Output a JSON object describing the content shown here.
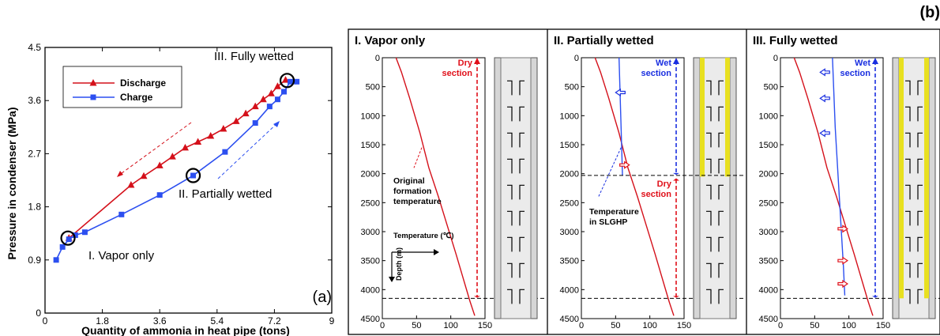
{
  "panel_labels": {
    "a": "(a)",
    "b": "(b)"
  },
  "colors": {
    "discharge": "#d4101a",
    "charge": "#2c4ff0",
    "red": "#e0101a",
    "blue": "#1a2fe0",
    "black": "#000000",
    "pipe_gray": "#d6d6d6",
    "pipe_yellow": "#e8e020"
  },
  "annotations_a": {
    "vapor_only": "I. Vapor only",
    "partially_wetted": "II. Partially wetted",
    "fully_wetted": "III. Fully wetted"
  },
  "b_panels": {
    "p1": {
      "title": "I. Vapor only",
      "dry_label": [
        "Dry",
        "section"
      ],
      "formation_label": [
        "Original",
        "formation",
        "temperature"
      ],
      "temp_axis_label": "Temperature (℃)",
      "depth_axis_label": "Depth (m)"
    },
    "p2": {
      "title": "II. Partially wetted",
      "wet_label": [
        "Wet",
        "section"
      ],
      "dry_label": [
        "Dry",
        "section"
      ],
      "slghp_label": [
        "Temperature",
        "in SLGHP"
      ]
    },
    "p3": {
      "title": "III. Fully wetted",
      "wet_label": [
        "Wet",
        "section"
      ]
    }
  },
  "chart_data": [
    {
      "type": "line",
      "xlabel": "Quantity of ammonia in heat pipe (tons)",
      "ylabel": "Pressure in condenser (MPa)",
      "xlim": [
        0,
        9
      ],
      "ylim": [
        0,
        4.5
      ],
      "xticks": [
        "0",
        "1.8",
        "3.6",
        "5.4",
        "7.2",
        "9"
      ],
      "yticks": [
        "0",
        "0.9",
        "1.8",
        "2.7",
        "3.6",
        "4.5"
      ],
      "grid": false,
      "legend_position": "top-left",
      "series": [
        {
          "name": "Discharge",
          "marker": "triangle",
          "x": [
            0.75,
            2.7,
            3.1,
            3.6,
            4.0,
            4.4,
            4.8,
            5.2,
            5.6,
            6.0,
            6.3,
            6.6,
            6.85,
            7.1,
            7.3,
            7.55
          ],
          "y": [
            1.27,
            2.17,
            2.32,
            2.5,
            2.65,
            2.8,
            2.9,
            3.0,
            3.12,
            3.25,
            3.38,
            3.5,
            3.62,
            3.72,
            3.84,
            3.95
          ]
        },
        {
          "name": "Charge",
          "marker": "square",
          "x": [
            0.35,
            0.55,
            0.75,
            0.95,
            1.25,
            2.4,
            3.6,
            4.65,
            5.65,
            6.6,
            7.05,
            7.3,
            7.5,
            7.7,
            7.9
          ],
          "y": [
            0.9,
            1.12,
            1.25,
            1.32,
            1.37,
            1.67,
            2.0,
            2.33,
            2.73,
            3.22,
            3.5,
            3.62,
            3.75,
            3.92,
            3.92
          ]
        }
      ]
    },
    {
      "type": "line",
      "title": "I. Vapor only",
      "xlim": [
        0,
        150
      ],
      "ylim": [
        4500,
        0
      ],
      "xticks": [
        "0",
        "50",
        "100",
        "150"
      ],
      "yticks": [
        "0",
        "500",
        "1000",
        "1500",
        "2000",
        "2500",
        "3000",
        "3500",
        "4000",
        "4500"
      ],
      "series": [
        {
          "name": "Original formation temperature",
          "x": [
            20,
            28,
            40,
            55,
            68,
            82,
            95,
            108,
            118,
            128,
            135
          ],
          "y": [
            0,
            250,
            700,
            1300,
            1900,
            2400,
            2900,
            3400,
            3800,
            4200,
            4450
          ]
        }
      ]
    },
    {
      "type": "line",
      "title": "II. Partially wetted",
      "xlim": [
        0,
        150
      ],
      "ylim": [
        4500,
        0
      ],
      "xticks": [
        "0",
        "50",
        "100",
        "150"
      ],
      "yticks": [
        "0",
        "500",
        "1000",
        "1500",
        "2000",
        "2500",
        "3000",
        "3500",
        "4000",
        "4500"
      ],
      "series": [
        {
          "name": "Original formation temperature",
          "x": [
            20,
            28,
            40,
            55,
            68,
            82,
            95,
            108,
            118,
            128,
            135
          ],
          "y": [
            0,
            250,
            700,
            1300,
            1900,
            2400,
            2900,
            3400,
            3800,
            4200,
            4450
          ]
        },
        {
          "name": "Temperature in SLGHP",
          "x": [
            55,
            56,
            57,
            58,
            59,
            60
          ],
          "y": [
            0,
            400,
            800,
            1200,
            1600,
            2030
          ]
        }
      ]
    },
    {
      "type": "line",
      "title": "III. Fully wetted",
      "xlim": [
        0,
        150
      ],
      "ylim": [
        4500,
        0
      ],
      "xticks": [
        "0",
        "50",
        "100",
        "150"
      ],
      "yticks": [
        "0",
        "500",
        "1000",
        "1500",
        "2000",
        "2500",
        "3000",
        "3500",
        "4000",
        "4500"
      ],
      "series": [
        {
          "name": "Original formation temperature",
          "x": [
            20,
            28,
            40,
            55,
            68,
            82,
            95,
            108,
            118,
            128,
            135
          ],
          "y": [
            0,
            250,
            700,
            1300,
            1900,
            2400,
            2900,
            3400,
            3800,
            4200,
            4450
          ]
        },
        {
          "name": "Temperature in SLGHP",
          "x": [
            76,
            78,
            80,
            83,
            86,
            89,
            92,
            94
          ],
          "y": [
            0,
            600,
            1200,
            1800,
            2400,
            3000,
            3600,
            4100
          ]
        }
      ]
    }
  ]
}
